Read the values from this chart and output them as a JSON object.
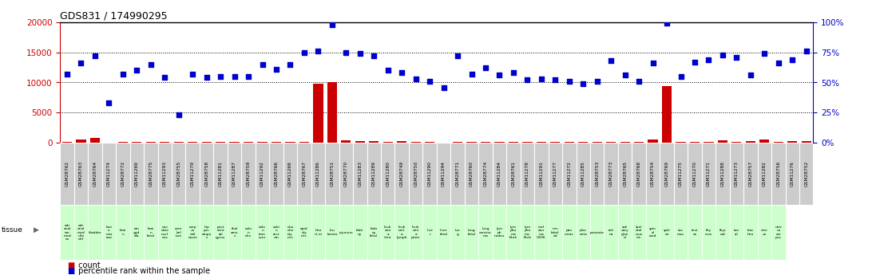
{
  "title": "GDS831 / 174990295",
  "sample_labels": [
    "GSM28762",
    "GSM28763",
    "GSM28764",
    "GSM11274",
    "GSM28772",
    "GSM11269",
    "GSM28775",
    "GSM11293",
    "GSM28755",
    "GSM11279",
    "GSM28758",
    "GSM11281",
    "GSM11287",
    "GSM28759",
    "GSM11292",
    "GSM28766",
    "GSM11268",
    "GSM28767",
    "GSM11286",
    "GSM28751",
    "GSM28770",
    "GSM11283",
    "GSM11289",
    "GSM11280",
    "GSM28749",
    "GSM28750",
    "GSM11290",
    "GSM11294",
    "GSM28771",
    "GSM28760",
    "GSM28774",
    "GSM11284",
    "GSM28761",
    "GSM11278",
    "GSM11291",
    "GSM11277",
    "GSM11272",
    "GSM11285",
    "GSM28753",
    "GSM28773",
    "GSM28765",
    "GSM28768",
    "GSM28754",
    "GSM28769",
    "GSM11275",
    "GSM11270",
    "GSM11271",
    "GSM11288",
    "GSM11273",
    "GSM28757",
    "GSM11282",
    "GSM28756",
    "GSM11276",
    "GSM28752"
  ],
  "tissue_labels": [
    "adr\nenal\ncor\nmed\nex",
    "adr\nenal\nmed\nulla\ndef",
    "bladder",
    "bon\ne\nmar\nrow",
    "brai\nn",
    "am\nygd\nala",
    "brai\nn\nfetal",
    "cau\ndate\nnucl\neus",
    "cere\nbel\nlum",
    "corp\nus\ncall\nosum",
    "hip\npoc\nampu\ns",
    "post\ncent\nral\ngyrus",
    "thal\namu\ns",
    "colo\nn\ndes",
    "colo\nn\ntran\nsver",
    "colo\nn\nrect\num",
    "duo\nden\nidy\nmis",
    "epid\nidy\nmis",
    "hea\nrt m",
    "leu\nkemia",
    "jejunum",
    "kidn\ney",
    "kidn\ney\nfetal",
    "leuk\nemi\na\nchro",
    "leuk\nemi\na\nlymph",
    "leuk\nemi\na\nprom",
    "live\nr",
    "liver\nfetal",
    "lun\ng",
    "lung\nfetal",
    "lung\ncarcino\nma",
    "lym\nph\nnodes",
    "lym\npho\nma\nBurk",
    "lym\npho\nma\nBurk",
    "mel\nano\nma\nG336",
    "mis\nlabel\ned",
    "pan\ncreas",
    "plac\nenta",
    "prostate",
    "reti\nna",
    "sali\nvary\nglan\nd",
    "skel\netal\nmus\ncle",
    "spin\nal\ncord",
    "sple\nen",
    "sto\nmac",
    "test\nes",
    "thy\nmus",
    "thyr\noid",
    "ton\nsil",
    "trac\nhea",
    "uter\nus",
    "uter\nus\ncor\npus"
  ],
  "counts": [
    200,
    600,
    800,
    100,
    200,
    200,
    200,
    200,
    200,
    200,
    250,
    200,
    200,
    200,
    200,
    200,
    150,
    200,
    9800,
    10000,
    400,
    300,
    300,
    200,
    300,
    200,
    150,
    100,
    200,
    200,
    200,
    150,
    200,
    200,
    200,
    150,
    150,
    150,
    200,
    200,
    200,
    150,
    600,
    9400,
    150,
    150,
    200,
    400,
    200,
    300,
    600,
    200,
    300,
    300
  ],
  "percentiles": [
    57,
    66,
    72,
    33,
    57,
    60,
    65,
    54,
    23,
    57,
    54,
    55,
    55,
    55,
    65,
    61,
    65,
    75,
    76,
    98,
    75,
    74,
    72,
    60,
    58,
    53,
    51,
    46,
    72,
    57,
    62,
    56,
    58,
    52,
    53,
    52,
    51,
    49,
    51,
    68,
    56,
    51,
    66,
    99,
    55,
    67,
    69,
    73,
    71,
    56,
    74,
    66,
    69,
    76
  ],
  "left_ylim": [
    0,
    20000
  ],
  "right_ylim": [
    0,
    100
  ],
  "left_yticks": [
    0,
    5000,
    10000,
    15000,
    20000
  ],
  "right_yticks": [
    0,
    25,
    50,
    75,
    100
  ],
  "bar_color": "#cc0000",
  "scatter_color": "#0000cc",
  "left_axis_color": "#cc0000",
  "right_axis_color": "#0000cc",
  "tissue_bg_color": "#ccffcc",
  "gsm_bg_color": "#cccccc",
  "background_color": "#ffffff"
}
